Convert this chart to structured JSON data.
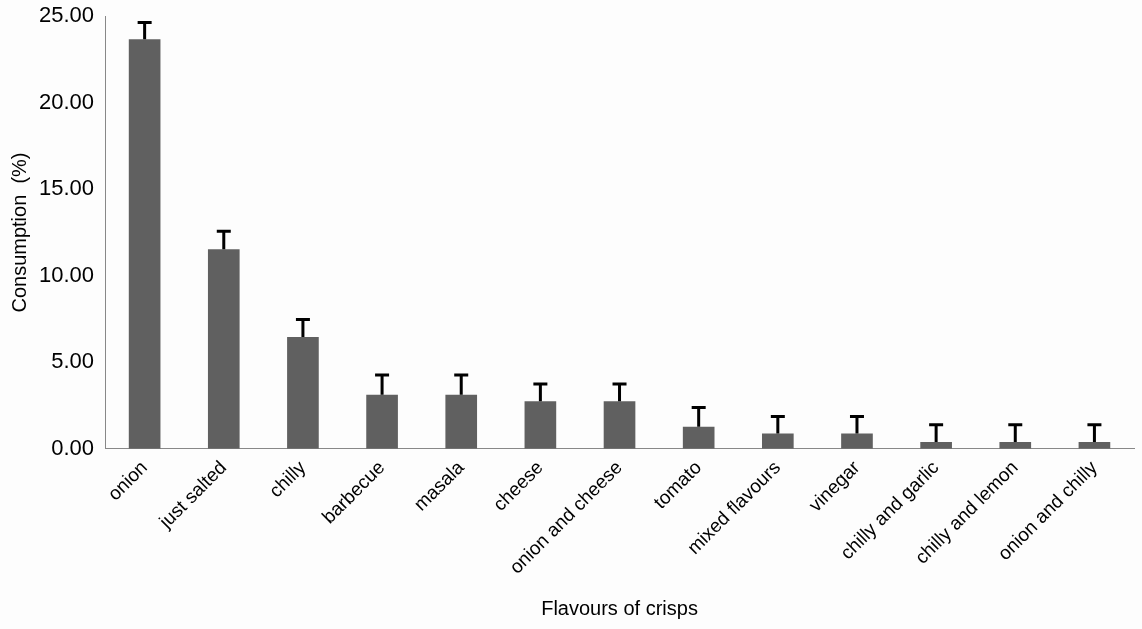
{
  "chart_data": {
    "type": "bar",
    "xlabel": "Flavours of crisps",
    "ylabel": "Consumption  (%)",
    "categories": [
      "onion",
      "just salted",
      "chilly",
      "barbecue",
      "masala",
      "cheese",
      "onion and cheese",
      "tomato",
      "mixed flavours",
      "vinegar",
      "chilly and garlic",
      "chilly and lemon",
      "onion and chilly"
    ],
    "values": [
      23.67,
      11.53,
      6.46,
      3.12,
      3.12,
      2.75,
      2.75,
      1.28,
      0.89,
      0.89,
      0.39,
      0.39,
      0.39
    ],
    "errors": [
      [
        23.67,
        24.63
      ],
      [
        11.53,
        12.57
      ],
      [
        6.46,
        7.47
      ],
      [
        3.12,
        4.27
      ],
      [
        3.12,
        4.27
      ],
      [
        2.75,
        3.74
      ],
      [
        2.75,
        3.74
      ],
      [
        1.28,
        2.38
      ],
      [
        0.89,
        1.86
      ],
      [
        0.89,
        1.86
      ],
      [
        0.39,
        1.39
      ],
      [
        0.39,
        1.39
      ],
      [
        0.39,
        1.39
      ]
    ],
    "color": "#606060",
    "ylim": [
      0,
      25
    ],
    "yticks": [
      {
        "value": 0,
        "label": "0.00"
      },
      {
        "value": 5,
        "label": "5.00"
      },
      {
        "value": 10,
        "label": "10.00"
      },
      {
        "value": 15,
        "label": "15.00"
      },
      {
        "value": 20,
        "label": "20.00"
      },
      {
        "value": 25,
        "label": "25.00"
      }
    ],
    "grid": false,
    "legend": false
  }
}
